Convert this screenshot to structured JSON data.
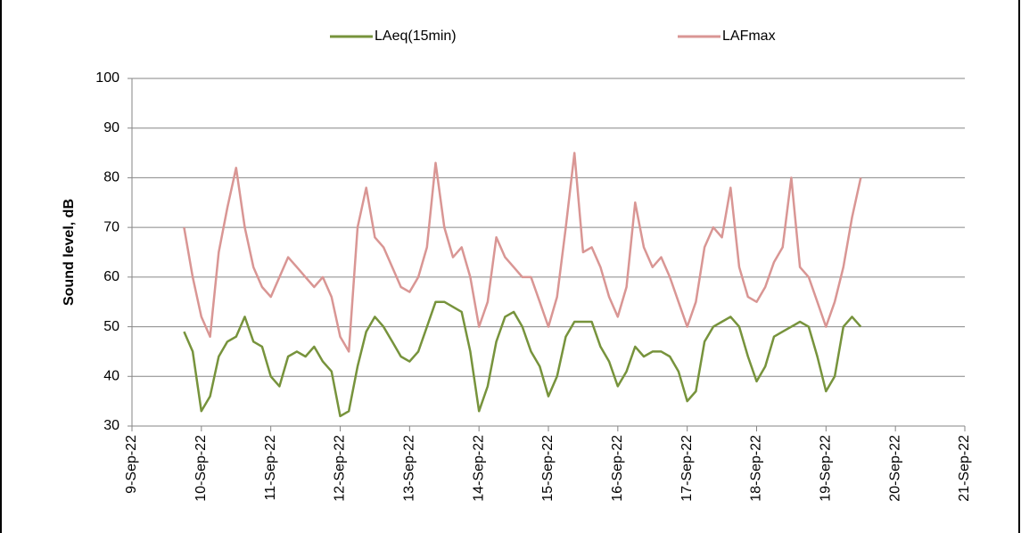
{
  "chart_data": {
    "type": "line",
    "y_label": "Sound level, dB",
    "x": [
      44813.75,
      44813.875,
      44814,
      44814.125,
      44814.25,
      44814.375,
      44814.5,
      44814.625,
      44814.75,
      44814.875,
      44815,
      44815.125,
      44815.25,
      44815.375,
      44815.5,
      44815.625,
      44815.75,
      44815.875,
      44816,
      44816.125,
      44816.25,
      44816.375,
      44816.5,
      44816.625,
      44816.75,
      44816.875,
      44817,
      44817.125,
      44817.25,
      44817.375,
      44817.5,
      44817.625,
      44817.75,
      44817.875,
      44818,
      44818.125,
      44818.25,
      44818.375,
      44818.5,
      44818.625,
      44818.75,
      44818.875,
      44819,
      44819.125,
      44819.25,
      44819.375,
      44819.5,
      44819.625,
      44819.75,
      44819.875,
      44820,
      44820.125,
      44820.25,
      44820.375,
      44820.5,
      44820.625,
      44820.75,
      44820.875,
      44821,
      44821.125,
      44821.25,
      44821.375,
      44821.5,
      44821.625,
      44821.75,
      44821.875,
      44822,
      44822.125,
      44822.25,
      44822.375,
      44822.5,
      44822.625,
      44822.75,
      44822.875,
      44823,
      44823.125,
      44823.25,
      44823.375,
      44823.5
    ],
    "series": [
      {
        "name": "LAeq(15min)",
        "color": "#77933c",
        "values": [
          49,
          45,
          33,
          36,
          44,
          47,
          48,
          52,
          47,
          46,
          40,
          38,
          44,
          45,
          44,
          46,
          43,
          41,
          32,
          33,
          42,
          49,
          52,
          50,
          47,
          44,
          43,
          45,
          50,
          55,
          55,
          54,
          53,
          45,
          33,
          38,
          47,
          52,
          53,
          50,
          45,
          42,
          36,
          40,
          48,
          51,
          51,
          51,
          46,
          43,
          38,
          41,
          46,
          44,
          45,
          45,
          44,
          41,
          35,
          37,
          47,
          50,
          51,
          52,
          50,
          44,
          39,
          42,
          48,
          49,
          50,
          51,
          50,
          44,
          37,
          40,
          50,
          52,
          50
        ]
      },
      {
        "name": "LAFmax",
        "color": "#d99694",
        "values": [
          70,
          60,
          52,
          48,
          65,
          74,
          82,
          70,
          62,
          58,
          56,
          60,
          64,
          62,
          60,
          58,
          60,
          56,
          48,
          45,
          70,
          78,
          68,
          66,
          62,
          58,
          57,
          60,
          66,
          83,
          70,
          64,
          66,
          60,
          50,
          55,
          68,
          64,
          62,
          60,
          60,
          55,
          50,
          56,
          70,
          85,
          65,
          66,
          62,
          56,
          52,
          58,
          75,
          66,
          62,
          64,
          60,
          55,
          50,
          55,
          66,
          70,
          68,
          78,
          62,
          56,
          55,
          58,
          63,
          66,
          80,
          62,
          60,
          55,
          50,
          55,
          62,
          72,
          80
        ]
      }
    ],
    "ylim": [
      30,
      100
    ],
    "yticks": [
      30,
      40,
      50,
      60,
      70,
      80,
      90,
      100
    ],
    "xlim": [
      44813,
      44825
    ],
    "xticks": [
      {
        "value": 44813,
        "label": "9-Sep-22"
      },
      {
        "value": 44814,
        "label": "10-Sep-22"
      },
      {
        "value": 44815,
        "label": "11-Sep-22"
      },
      {
        "value": 44816,
        "label": "12-Sep-22"
      },
      {
        "value": 44817,
        "label": "13-Sep-22"
      },
      {
        "value": 44818,
        "label": "14-Sep-22"
      },
      {
        "value": 44819,
        "label": "15-Sep-22"
      },
      {
        "value": 44820,
        "label": "16-Sep-22"
      },
      {
        "value": 44821,
        "label": "17-Sep-22"
      },
      {
        "value": 44822,
        "label": "18-Sep-22"
      },
      {
        "value": 44823,
        "label": "19-Sep-22"
      },
      {
        "value": 44824,
        "label": "20-Sep-22"
      },
      {
        "value": 44825,
        "label": "21-Sep-22"
      }
    ],
    "grid": true,
    "legend": "top"
  }
}
